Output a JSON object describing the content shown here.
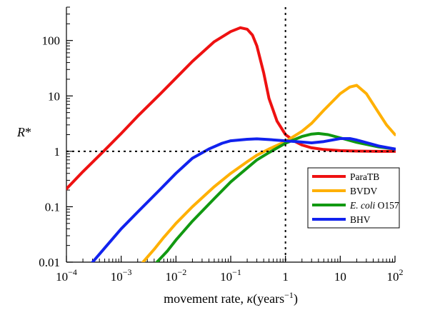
{
  "chart_data": {
    "type": "line",
    "title": "",
    "xlabel": {
      "main": "movement rate, ",
      "symbol": "κ",
      "unit_open": "(years",
      "unit_exp": "−1",
      "unit_close": ")"
    },
    "ylabel": {
      "main": "R",
      "sub": "*"
    },
    "x_scale": "log",
    "y_scale": "log",
    "xlim": [
      0.0001,
      100
    ],
    "ylim": [
      0.01,
      400
    ],
    "x_ticks": [
      {
        "value": 0.0001,
        "base": "10",
        "exp": "−4"
      },
      {
        "value": 0.001,
        "base": "10",
        "exp": "−3"
      },
      {
        "value": 0.01,
        "base": "10",
        "exp": "−2"
      },
      {
        "value": 0.1,
        "base": "10",
        "exp": "−1"
      },
      {
        "value": 1,
        "base": "1",
        "exp": ""
      },
      {
        "value": 10,
        "base": "10",
        "exp": ""
      },
      {
        "value": 100,
        "base": "10",
        "exp": "2"
      }
    ],
    "y_ticks": [
      {
        "value": 0.01,
        "label": "0.01"
      },
      {
        "value": 0.1,
        "label": "0.1"
      },
      {
        "value": 1,
        "label": "1"
      },
      {
        "value": 10,
        "label": "10"
      },
      {
        "value": 100,
        "label": "100"
      }
    ],
    "reference_lines": [
      {
        "axis": "x",
        "value": 1,
        "style": "dotted"
      },
      {
        "axis": "y",
        "value": 1,
        "style": "dotted"
      }
    ],
    "grid": false,
    "legend": {
      "position": "lower-right"
    },
    "series": [
      {
        "name": "ParaTB",
        "name_italic": "",
        "name_rest": "ParaTB",
        "color": "#ee1111",
        "points": [
          [
            0.0001,
            0.21
          ],
          [
            0.0002,
            0.43
          ],
          [
            0.0005,
            1.05
          ],
          [
            0.001,
            2.1
          ],
          [
            0.002,
            4.3
          ],
          [
            0.005,
            10.5
          ],
          [
            0.01,
            21
          ],
          [
            0.02,
            42
          ],
          [
            0.05,
            95
          ],
          [
            0.1,
            145
          ],
          [
            0.15,
            170
          ],
          [
            0.2,
            160
          ],
          [
            0.25,
            125
          ],
          [
            0.3,
            80
          ],
          [
            0.4,
            26
          ],
          [
            0.5,
            9
          ],
          [
            0.7,
            3.5
          ],
          [
            1,
            2.0
          ],
          [
            1.5,
            1.5
          ],
          [
            2,
            1.3
          ],
          [
            3,
            1.16
          ],
          [
            5,
            1.08
          ],
          [
            10,
            1.03
          ],
          [
            20,
            1.01
          ],
          [
            50,
            1.0
          ],
          [
            100,
            1.0
          ]
        ]
      },
      {
        "name": "BVDV",
        "name_italic": "",
        "name_rest": "BVDV",
        "color": "#ffb000",
        "points": [
          [
            0.0025,
            0.01
          ],
          [
            0.004,
            0.017
          ],
          [
            0.006,
            0.028
          ],
          [
            0.01,
            0.05
          ],
          [
            0.02,
            0.1
          ],
          [
            0.05,
            0.23
          ],
          [
            0.1,
            0.4
          ],
          [
            0.2,
            0.65
          ],
          [
            0.3,
            0.85
          ],
          [
            0.5,
            1.1
          ],
          [
            1,
            1.5
          ],
          [
            2,
            2.3
          ],
          [
            3,
            3.2
          ],
          [
            5,
            5.5
          ],
          [
            10,
            11
          ],
          [
            15,
            14.5
          ],
          [
            20,
            15.5
          ],
          [
            30,
            11
          ],
          [
            50,
            5
          ],
          [
            70,
            3
          ],
          [
            100,
            2
          ]
        ]
      },
      {
        "name": "E. coli O157",
        "name_italic": "E. coli",
        "name_rest": " O157",
        "color": "#119911",
        "points": [
          [
            0.0045,
            0.01
          ],
          [
            0.007,
            0.016
          ],
          [
            0.01,
            0.025
          ],
          [
            0.02,
            0.055
          ],
          [
            0.05,
            0.14
          ],
          [
            0.1,
            0.28
          ],
          [
            0.2,
            0.5
          ],
          [
            0.3,
            0.7
          ],
          [
            0.5,
            0.95
          ],
          [
            1,
            1.4
          ],
          [
            2,
            1.85
          ],
          [
            3,
            2.05
          ],
          [
            4,
            2.1
          ],
          [
            6,
            2.0
          ],
          [
            10,
            1.75
          ],
          [
            20,
            1.45
          ],
          [
            50,
            1.2
          ],
          [
            100,
            1.1
          ]
        ]
      },
      {
        "name": "BHV",
        "name_italic": "",
        "name_rest": "BHV",
        "color": "#1122ee",
        "points": [
          [
            0.0003,
            0.01
          ],
          [
            0.0005,
            0.018
          ],
          [
            0.001,
            0.04
          ],
          [
            0.002,
            0.08
          ],
          [
            0.005,
            0.2
          ],
          [
            0.01,
            0.4
          ],
          [
            0.02,
            0.75
          ],
          [
            0.04,
            1.1
          ],
          [
            0.07,
            1.4
          ],
          [
            0.1,
            1.55
          ],
          [
            0.2,
            1.65
          ],
          [
            0.3,
            1.68
          ],
          [
            0.5,
            1.63
          ],
          [
            1,
            1.55
          ],
          [
            2,
            1.47
          ],
          [
            3,
            1.42
          ],
          [
            5,
            1.5
          ],
          [
            10,
            1.7
          ],
          [
            15,
            1.7
          ],
          [
            20,
            1.6
          ],
          [
            50,
            1.25
          ],
          [
            100,
            1.1
          ]
        ]
      }
    ]
  }
}
